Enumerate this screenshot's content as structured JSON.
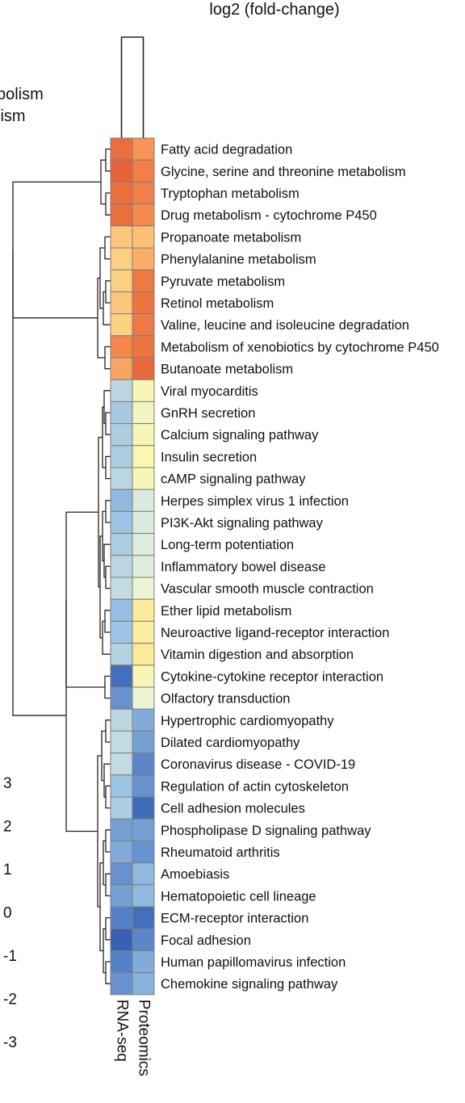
{
  "chart_data": {
    "type": "heatmap",
    "title": "log2 (fold-change)",
    "left_text_fragments": [
      "bolism",
      "lism"
    ],
    "columns": [
      "RNA-seq",
      "Proteomics"
    ],
    "rows": [
      {
        "label": "Fatty acid degradation",
        "values": [
          2.5,
          1.9
        ]
      },
      {
        "label": "Glycine, serine and threonine metabolism",
        "values": [
          2.7,
          2.2
        ]
      },
      {
        "label": "Tryptophan metabolism",
        "values": [
          2.5,
          2.2
        ]
      },
      {
        "label": "Drug metabolism - cytochrome P450",
        "values": [
          2.5,
          2.0
        ]
      },
      {
        "label": "Propanoate metabolism",
        "values": [
          1.3,
          1.4
        ]
      },
      {
        "label": "Phenylalanine metabolism",
        "values": [
          1.2,
          1.6
        ]
      },
      {
        "label": "Pyruvate metabolism",
        "values": [
          1.2,
          2.3
        ]
      },
      {
        "label": "Retinol metabolism",
        "values": [
          1.3,
          2.4
        ]
      },
      {
        "label": "Valine, leucine and isoleucine degradation",
        "values": [
          1.2,
          2.3
        ]
      },
      {
        "label": "Metabolism of xenobiotics by cytochrome P450",
        "values": [
          2.1,
          2.4
        ]
      },
      {
        "label": "Butanoate metabolism",
        "values": [
          1.7,
          2.6
        ]
      },
      {
        "label": "Viral myocarditis",
        "values": [
          -0.6,
          0.4
        ]
      },
      {
        "label": "GnRH secretion",
        "values": [
          -0.9,
          0.3
        ]
      },
      {
        "label": "Calcium signaling pathway",
        "values": [
          -0.8,
          0.4
        ]
      },
      {
        "label": "Insulin secretion",
        "values": [
          -0.8,
          0.5
        ]
      },
      {
        "label": "cAMP signaling pathway",
        "values": [
          -0.6,
          0.4
        ]
      },
      {
        "label": "Herpes simplex virus 1 infection",
        "values": [
          -1.2,
          -0.2
        ]
      },
      {
        "label": "PI3K-Akt signaling pathway",
        "values": [
          -1.0,
          -0.2
        ]
      },
      {
        "label": "Long-term potentiation",
        "values": [
          -0.8,
          -0.1
        ]
      },
      {
        "label": "Inflammatory bowel disease",
        "values": [
          -0.6,
          -0.1
        ]
      },
      {
        "label": "Vascular smooth muscle contraction",
        "values": [
          -0.5,
          0.1
        ]
      },
      {
        "label": "Ether lipid metabolism",
        "values": [
          -1.1,
          0.8
        ]
      },
      {
        "label": "Neuroactive ligand-receptor interaction",
        "values": [
          -1.0,
          0.7
        ]
      },
      {
        "label": "Vitamin digestion and absorption",
        "values": [
          -0.7,
          0.8
        ]
      },
      {
        "label": "Cytokine-cytokine receptor interaction",
        "values": [
          -2.5,
          0.4
        ]
      },
      {
        "label": "Olfactory transduction",
        "values": [
          -1.8,
          0.1
        ]
      },
      {
        "label": "Hypertrophic cardiomyopathy",
        "values": [
          -0.6,
          -1.4
        ]
      },
      {
        "label": "Dilated cardiomyopathy",
        "values": [
          -0.5,
          -1.6
        ]
      },
      {
        "label": "Coronavirus disease - COVID-19",
        "values": [
          -0.5,
          -2.0
        ]
      },
      {
        "label": "Regulation of actin cytoskeleton",
        "values": [
          -1.0,
          -1.8
        ]
      },
      {
        "label": "Cell adhesion molecules",
        "values": [
          -0.8,
          -2.6
        ]
      },
      {
        "label": "Phospholipase D signaling pathway",
        "values": [
          -1.6,
          -1.6
        ]
      },
      {
        "label": "Rheumatoid arthritis",
        "values": [
          -1.4,
          -1.8
        ]
      },
      {
        "label": "Amoebiasis",
        "values": [
          -1.8,
          -1.2
        ]
      },
      {
        "label": "Hematopoietic cell lineage",
        "values": [
          -1.6,
          -1.2
        ]
      },
      {
        "label": "ECM-receptor interaction",
        "values": [
          -2.1,
          -2.5
        ]
      },
      {
        "label": "Focal adhesion",
        "values": [
          -2.8,
          -2.0
        ]
      },
      {
        "label": "Human papillomavirus infection",
        "values": [
          -2.1,
          -1.4
        ]
      },
      {
        "label": "Chemokine signaling pathway",
        "values": [
          -1.8,
          -1.3
        ]
      }
    ],
    "color_scale": {
      "ticks": [
        3,
        2,
        1,
        0,
        -1,
        -2,
        -3
      ],
      "stops": [
        {
          "value": -3,
          "color": "#2f57b0"
        },
        {
          "value": -2,
          "color": "#5b86c8"
        },
        {
          "value": -1,
          "color": "#9ec4e4"
        },
        {
          "value": 0,
          "color": "#e6f2dc"
        },
        {
          "value": 0.5,
          "color": "#fbf7ae"
        },
        {
          "value": 1,
          "color": "#fde08c"
        },
        {
          "value": 1.5,
          "color": "#fbb770"
        },
        {
          "value": 2,
          "color": "#f68b4e"
        },
        {
          "value": 3,
          "color": "#e0502c"
        }
      ]
    }
  }
}
